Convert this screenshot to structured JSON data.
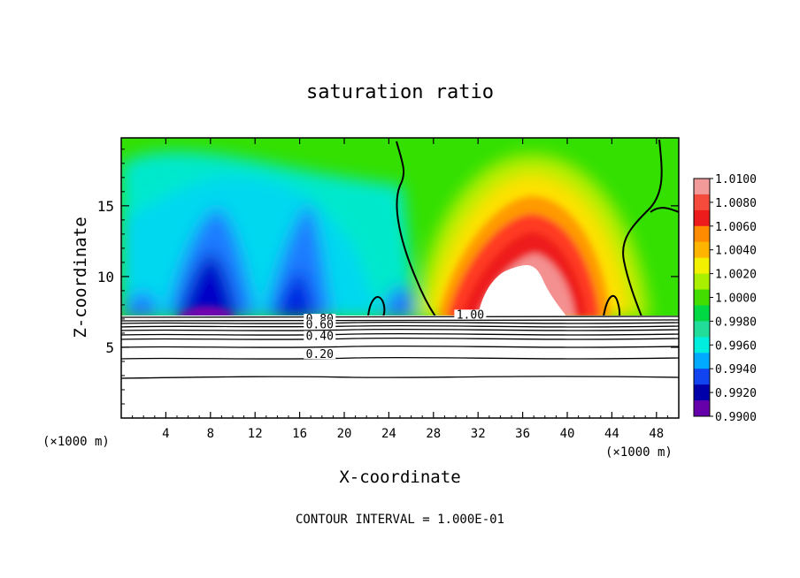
{
  "chart_data": {
    "type": "heatmap",
    "title": "saturation ratio",
    "xlabel": "X-coordinate",
    "ylabel": "Z-coordinate",
    "x_unit": "(×1000 m)",
    "x_unit_right": "(×1000 m)",
    "xlim": [
      0,
      50
    ],
    "ylim": [
      0,
      19.8
    ],
    "x_ticks": [
      "4",
      "8",
      "12",
      "16",
      "20",
      "24",
      "28",
      "32",
      "36",
      "40",
      "44",
      "48"
    ],
    "x_tick_values": [
      4,
      8,
      12,
      16,
      20,
      24,
      28,
      32,
      36,
      40,
      44,
      48
    ],
    "y_ticks": [
      "5",
      "10",
      "15"
    ],
    "y_tick_values": [
      5,
      10,
      15
    ],
    "footer": "CONTOUR INTERVAL = 1.000E-01",
    "colorbar": {
      "min": 0.99,
      "max": 1.01,
      "labels": [
        "1.0100",
        "1.0080",
        "1.0060",
        "1.0040",
        "1.0020",
        "1.0000",
        "0.9980",
        "0.9960",
        "0.9940",
        "0.9920",
        "0.9900"
      ],
      "values": [
        1.01,
        1.008,
        1.006,
        1.004,
        1.002,
        1.0,
        0.998,
        0.996,
        0.994,
        0.992,
        0.99
      ],
      "colors": [
        "#f29a9a",
        "#f44b3c",
        "#ec1c1c",
        "#ff8c00",
        "#ffb400",
        "#f0f000",
        "#aaee00",
        "#44dd00",
        "#00d844",
        "#22dd99",
        "#00eedd",
        "#00aaff",
        "#1144ee",
        "#0000aa",
        "#6600aa"
      ]
    },
    "contour_labels": [
      {
        "text": "0.80",
        "x": 17.8,
        "z": 6.8
      },
      {
        "text": "0.60",
        "x": 17.8,
        "z": 6.4
      },
      {
        "text": "0.40",
        "x": 17.8,
        "z": 5.6
      },
      {
        "text": "0.20",
        "x": 17.8,
        "z": 4.3
      },
      {
        "text": "1.00",
        "x": 31.3,
        "z": 7.1
      }
    ],
    "cloud_base_z": 7.2
  }
}
